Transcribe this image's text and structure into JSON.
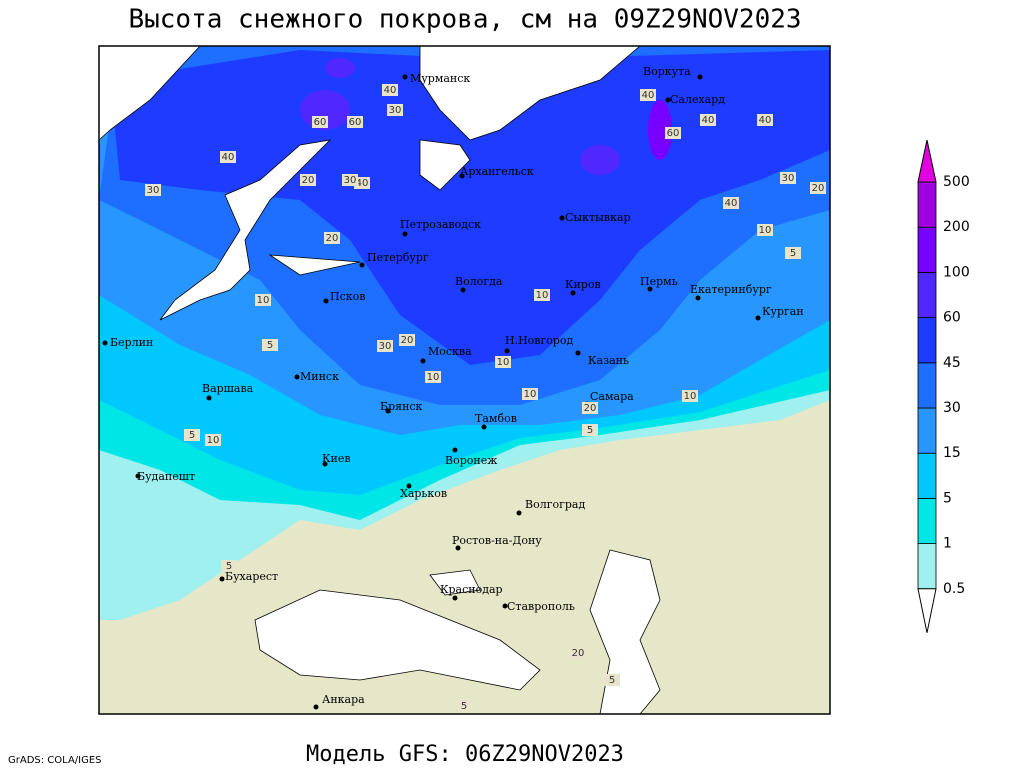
{
  "header": {
    "title": "Высота снежного покрова, см на 09Z29NOV2023"
  },
  "footer": {
    "model": "Модель GFS: 06Z29NOV2023",
    "credit": "GrADS: COLA/IGES"
  },
  "cities": [
    "Мурманск",
    "Воркута",
    "Салехард",
    "Архангельск",
    "Сыктывкар",
    "Петрозаводск",
    "Петербург",
    "Вологда",
    "Киров",
    "Пермь",
    "Екатеринбург",
    "Курган",
    "Псков",
    "Берлин",
    "Н.Новгород",
    "Казань",
    "Москва",
    "Минск",
    "Варшава",
    "Самара",
    "Брянск",
    "Тамбов",
    "Киев",
    "Воронеж",
    "Будапешт",
    "Харьков",
    "Волгоград",
    "Ростов-на-Дону",
    "Бухарест",
    "Краснодар",
    "Ставрополь",
    "Анкара"
  ],
  "contour_labels": [
    40,
    30,
    60,
    60,
    40,
    40,
    40,
    40,
    40,
    30,
    20,
    60,
    30,
    40,
    30,
    20,
    20,
    10,
    10,
    10,
    30,
    20,
    10,
    10,
    10,
    20,
    5,
    5,
    10,
    10,
    5,
    5,
    5,
    20,
    5,
    5
  ],
  "legend": {
    "levels": [
      0.5,
      1,
      5,
      15,
      30,
      45,
      60,
      100,
      200,
      500
    ],
    "colors": [
      "#ffffff",
      "#a0f0f0",
      "#00e6e6",
      "#00c8ff",
      "#2896ff",
      "#1e6eff",
      "#1e3cff",
      "#5028ff",
      "#7800ff",
      "#a000e0",
      "#e000e0"
    ]
  }
}
